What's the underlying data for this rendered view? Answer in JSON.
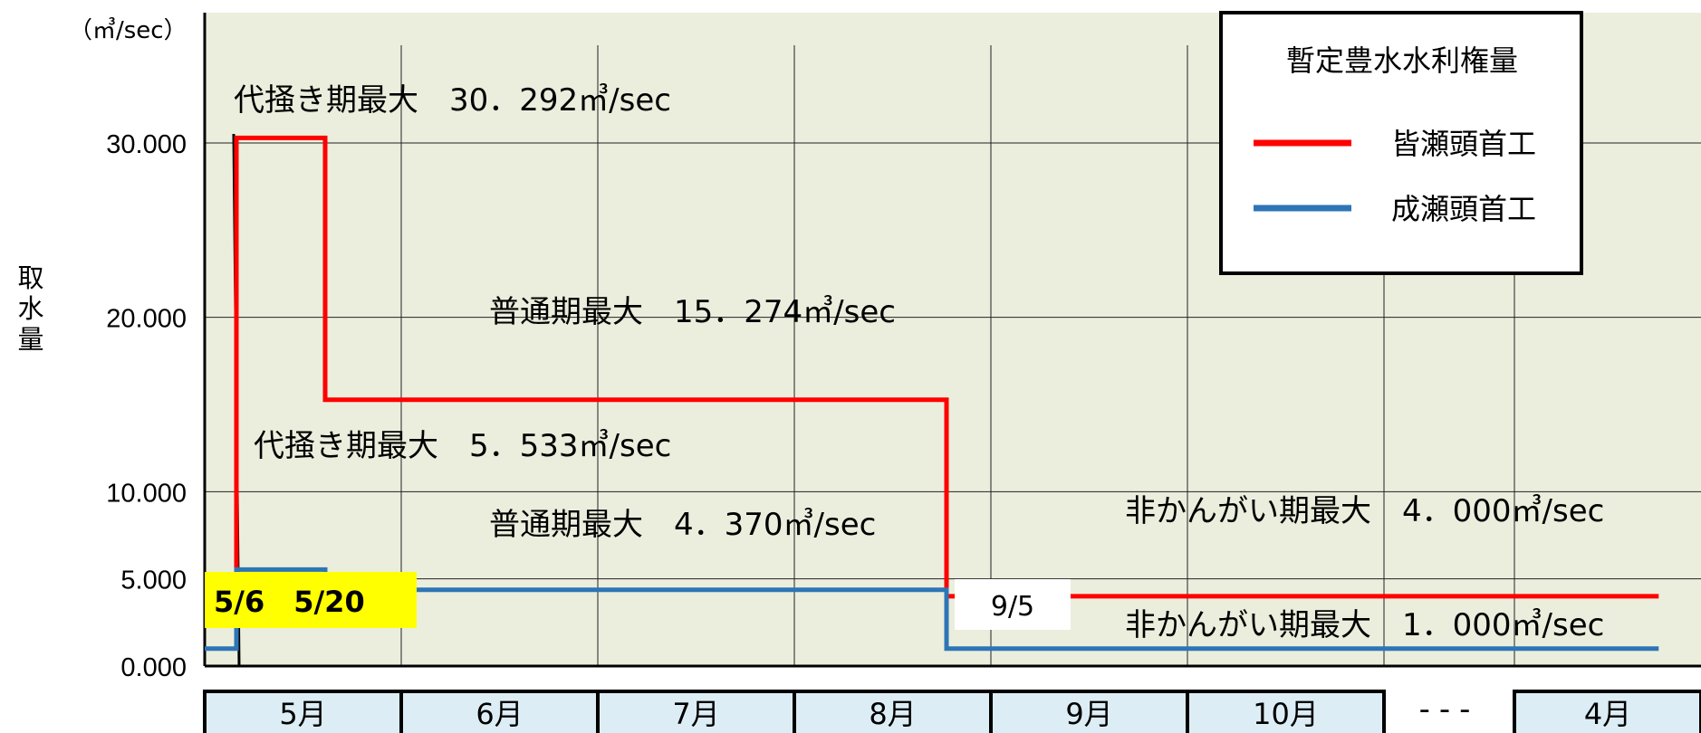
{
  "chart_data": {
    "type": "line",
    "unit_label": "（㎥/sec）",
    "ylabel_chars": [
      "取",
      "水",
      "量"
    ],
    "y_ticks": [
      0,
      5,
      10,
      20,
      30
    ],
    "y_tick_labels": [
      "0.000",
      "5.000",
      "10.000",
      "20.000",
      "30.000"
    ],
    "ylim": [
      0,
      35
    ],
    "grid": true,
    "months": [
      "5月",
      "6月",
      "7月",
      "8月",
      "9月",
      "10月",
      "",
      "4月"
    ],
    "month_gap_label": "---",
    "legend": {
      "title": "暫定豊水水利権量",
      "placement": "top-right",
      "entries": [
        {
          "name": "皆瀬頭首工",
          "color": "#ff0000"
        },
        {
          "name": "成瀬頭首工",
          "color": "#2e75b6"
        }
      ]
    },
    "series": [
      {
        "name": "皆瀬頭首工",
        "color": "#ff0000",
        "points": [
          {
            "day": 0,
            "value": 4.0
          },
          {
            "day": 5,
            "value": 4.0
          },
          {
            "day": 5,
            "value": 30.292
          },
          {
            "day": 19,
            "value": 30.292
          },
          {
            "day": 19,
            "value": 15.274
          },
          {
            "day": 116,
            "value": 15.274
          },
          {
            "day": 116,
            "value": 4.0
          },
          {
            "day": 210,
            "value": 4.0
          }
        ]
      },
      {
        "name": "成瀬頭首工",
        "color": "#2e75b6",
        "points": [
          {
            "day": 0,
            "value": 1.0
          },
          {
            "day": 5,
            "value": 1.0
          },
          {
            "day": 5,
            "value": 5.533
          },
          {
            "day": 19,
            "value": 5.533
          },
          {
            "day": 19,
            "value": 4.37
          },
          {
            "day": 116,
            "value": 4.37
          },
          {
            "day": 116,
            "value": 1.0
          },
          {
            "day": 210,
            "value": 1.0
          }
        ]
      }
    ],
    "annotations": [
      {
        "text": "代掻き期最大　30．292㎥/sec",
        "series": "皆瀬頭首工"
      },
      {
        "text": "普通期最大　15．274㎥/sec",
        "series": "皆瀬頭首工"
      },
      {
        "text": "代掻き期最大　5．533㎥/sec",
        "series": "成瀬頭首工"
      },
      {
        "text": "普通期最大　4．370㎥/sec",
        "series": "成瀬頭首工"
      },
      {
        "text": "非かんがい期最大　4．000㎥/sec",
        "series": "皆瀬頭首工"
      },
      {
        "text": "非かんがい期最大　1．000㎥/sec",
        "series": "成瀬頭首工"
      }
    ],
    "date_boxes": [
      {
        "text": "5/6　5/20",
        "day": 5,
        "background": "#ffff00"
      },
      {
        "text": "9/5",
        "day": 116,
        "background": "#ffffff"
      }
    ]
  }
}
